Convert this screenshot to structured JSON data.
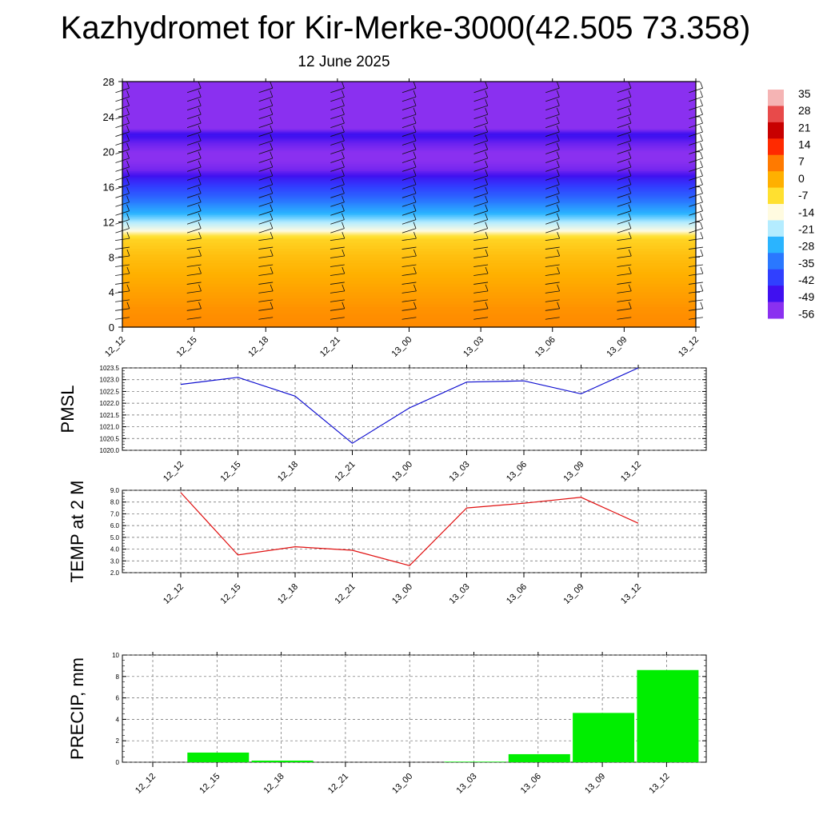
{
  "header": {
    "title": "Kazhydromet for Kir-Merke-3000(42.505 73.358)",
    "subtitle": "12 June 2025"
  },
  "chart_data": [
    {
      "type": "heatmap",
      "title": "",
      "x_tick_labels": [
        "12_12",
        "12_15",
        "12_18",
        "12_21",
        "13_00",
        "13_03",
        "13_06",
        "13_09",
        "13_12"
      ],
      "ylim": [
        0,
        28
      ],
      "y_ticks": [
        0,
        4,
        8,
        12,
        16,
        20,
        24,
        28
      ],
      "profile_levels": [
        0,
        2,
        4,
        6,
        8,
        10,
        10.5,
        11,
        12,
        13,
        14,
        15,
        16,
        17,
        18,
        19,
        20,
        21,
        22,
        23,
        24,
        26,
        28
      ],
      "profile_values": [
        5,
        4,
        2,
        0,
        -2,
        -5,
        -8,
        -14,
        -21,
        -28,
        -33,
        -38,
        -42,
        -47,
        -54,
        -56,
        -56,
        -53,
        -48,
        -60,
        -62,
        -62,
        -62
      ],
      "colorbar": {
        "labels": [
          "35",
          "28",
          "21",
          "14",
          "7",
          "0",
          "-7",
          "-14",
          "-21",
          "-28",
          "-35",
          "-42",
          "-49",
          "-56"
        ],
        "colors": [
          "#f5b4b4",
          "#e84a4a",
          "#c80000",
          "#ff2a00",
          "#ff7a00",
          "#ffb000",
          "#ffe030",
          "#fffbe0",
          "#b4ecff",
          "#2ab4ff",
          "#2a78ff",
          "#3040ff",
          "#4010f0",
          "#8a30f0"
        ]
      },
      "wind_barbs": true,
      "grid": false
    },
    {
      "type": "line",
      "ylabel": "PMSL",
      "categories": [
        "12_12",
        "12_15",
        "12_18",
        "12_21",
        "13_00",
        "13_03",
        "13_06",
        "13_09",
        "13_12"
      ],
      "values": [
        1022.8,
        1023.1,
        1022.3,
        1020.3,
        1021.8,
        1022.9,
        1022.95,
        1022.4,
        1023.5
      ],
      "ylim": [
        1020.0,
        1023.5
      ],
      "y_tick_labels": [
        "1020.0",
        "1020.5",
        "1021.0",
        "1021.5",
        "1022.0",
        "1022.5",
        "1023.0",
        "1023.5"
      ],
      "color": "#1010d0",
      "grid": true
    },
    {
      "type": "line",
      "ylabel": "TEMP at 2 M",
      "categories": [
        "12_12",
        "12_15",
        "12_18",
        "12_21",
        "13_00",
        "13_03",
        "13_06",
        "13_09",
        "13_12"
      ],
      "values": [
        8.8,
        3.5,
        4.2,
        3.9,
        2.6,
        7.5,
        7.9,
        8.4,
        6.2
      ],
      "ylim": [
        2.0,
        9.0
      ],
      "y_tick_labels": [
        "2.0",
        "3.0",
        "4.0",
        "5.0",
        "6.0",
        "7.0",
        "8.0",
        "9.0"
      ],
      "color": "#e01010",
      "grid": true
    },
    {
      "type": "bar",
      "ylabel": "PRECIP, mm",
      "categories": [
        "12_12",
        "12_15",
        "12_18",
        "12_21",
        "13_00",
        "13_03",
        "13_06",
        "13_09",
        "13_12"
      ],
      "values": [
        0,
        0.9,
        0.15,
        0,
        0,
        0.05,
        0.75,
        4.6,
        8.6
      ],
      "ylim": [
        0,
        10
      ],
      "y_tick_labels": [
        "0",
        "2",
        "4",
        "6",
        "8",
        "10"
      ],
      "color": "#00ee00",
      "grid": true
    }
  ]
}
